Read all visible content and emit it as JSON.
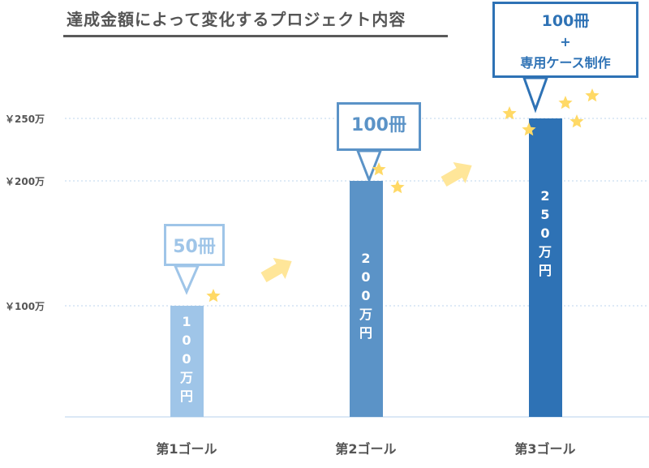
{
  "title": "達成金額によって変化するプロジェクト内容",
  "chart_data": {
    "type": "bar",
    "categories": [
      "第1ゴール",
      "第2ゴール",
      "第3ゴール"
    ],
    "values": [
      100,
      200,
      250
    ],
    "unit": "万円",
    "bar_labels": [
      "100万円",
      "200万円",
      "250万円"
    ],
    "y_ticks": [
      "￥100万",
      "￥200万",
      "￥250万"
    ],
    "y_tick_values": [
      100,
      200,
      250
    ],
    "grid": true,
    "callouts": [
      {
        "line1": "50冊",
        "line2": "",
        "line3": ""
      },
      {
        "line1": "100冊",
        "line2": "",
        "line3": ""
      },
      {
        "line1": "100冊",
        "line2": "+",
        "line3": "専用ケース制作"
      }
    ],
    "colors": [
      "#9fc5e8",
      "#5b93c7",
      "#2e72b5"
    ],
    "accent_star": "#ffd966",
    "arrow_color": "#ffe699"
  }
}
